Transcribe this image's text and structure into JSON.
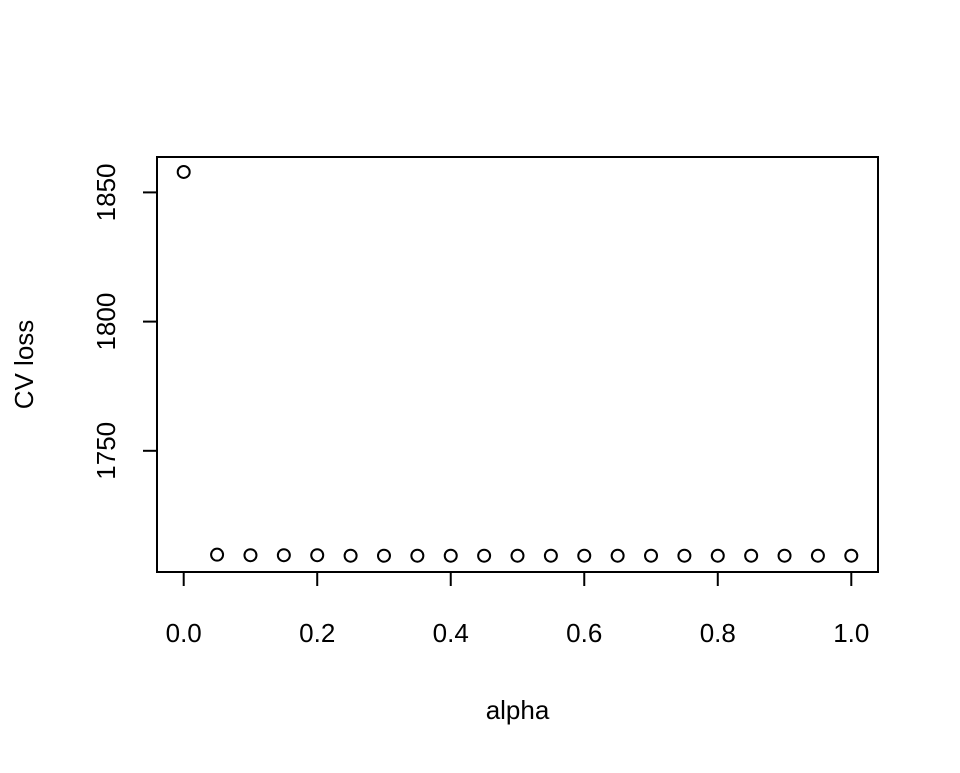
{
  "chart_data": {
    "type": "scatter",
    "title": "",
    "xlabel": "alpha",
    "ylabel": "CV loss",
    "xlim": [
      -0.04,
      1.04
    ],
    "ylim": [
      1703.1,
      1863.7
    ],
    "x_ticks": [
      0.0,
      0.2,
      0.4,
      0.6,
      0.8,
      1.0
    ],
    "x_tick_labels": [
      "0.0",
      "0.2",
      "0.4",
      "0.6",
      "0.8",
      "1.0"
    ],
    "y_ticks": [
      1750,
      1800,
      1850
    ],
    "y_tick_labels": [
      "1750",
      "1800",
      "1850"
    ],
    "grid": false,
    "legend": "none",
    "marker": "open-circle",
    "color": "#000000",
    "x": [
      0.0,
      0.05,
      0.1,
      0.15,
      0.2,
      0.25,
      0.3,
      0.35,
      0.4,
      0.45,
      0.5,
      0.55,
      0.6,
      0.65,
      0.7,
      0.75,
      0.8,
      0.85,
      0.9,
      0.95,
      1.0
    ],
    "y": [
      1857.9,
      1709.8,
      1709.6,
      1709.6,
      1709.6,
      1709.4,
      1709.4,
      1709.4,
      1709.4,
      1709.4,
      1709.4,
      1709.4,
      1709.4,
      1709.4,
      1709.4,
      1709.4,
      1709.4,
      1709.4,
      1709.4,
      1709.4,
      1709.4
    ]
  }
}
